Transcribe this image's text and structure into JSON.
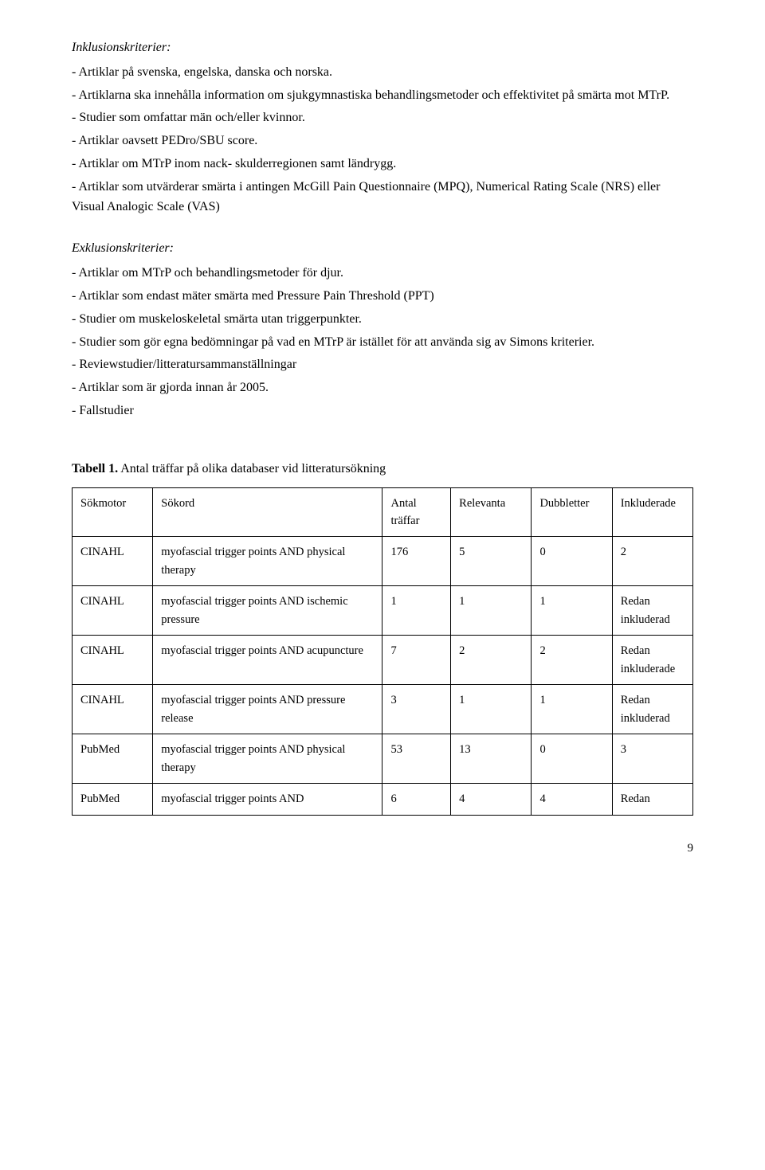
{
  "section1": {
    "heading": "Inklusionskriterier:",
    "items": [
      "- Artiklar på svenska, engelska, danska och norska.",
      "- Artiklarna ska innehålla information om sjukgymnastiska behandlingsmetoder och effektivitet på smärta mot MTrP.",
      "- Studier som omfattar män och/eller kvinnor.",
      "- Artiklar oavsett PEDro/SBU score.",
      "- Artiklar om MTrP inom nack- skulderregionen samt ländrygg.",
      "- Artiklar som utvärderar smärta i antingen McGill Pain Questionnaire (MPQ), Numerical Rating Scale (NRS) eller Visual Analogic Scale (VAS)"
    ]
  },
  "section2": {
    "heading": "Exklusionskriterier:",
    "items": [
      "- Artiklar om MTrP och behandlingsmetoder för djur.",
      "- Artiklar som endast mäter smärta med Pressure Pain Threshold (PPT)",
      "- Studier om muskeloskeletal smärta utan triggerpunkter.",
      "- Studier som gör egna bedömningar på vad en MTrP är istället för att använda sig av Simons kriterier.",
      "- Reviewstudier/litteratursammanställningar",
      "- Artiklar som är gjorda innan år 2005.",
      "- Fallstudier"
    ]
  },
  "table": {
    "caption_bold": "Tabell 1.",
    "caption_rest": " Antal träffar på olika databaser vid litteratursökning",
    "headers": {
      "sokmotor": "Sökmotor",
      "sokord": "Sökord",
      "antal": "Antal träffar",
      "relevanta": "Relevanta",
      "dubbletter": "Dubbletter",
      "inkluderade": "Inkluderade"
    },
    "rows": [
      {
        "sokmotor": "CINAHL",
        "sokord": "myofascial trigger points AND physical therapy",
        "antal": "176",
        "relevanta": "5",
        "dubbletter": "0",
        "inkluderade": "2"
      },
      {
        "sokmotor": "CINAHL",
        "sokord": "myofascial trigger points AND ischemic pressure",
        "antal": "1",
        "relevanta": "1",
        "dubbletter": "1",
        "inkluderade": "Redan inkluderad"
      },
      {
        "sokmotor": "CINAHL",
        "sokord": "myofascial trigger points AND acupuncture",
        "antal": "7",
        "relevanta": "2",
        "dubbletter": "2",
        "inkluderade": "Redan inkluderade"
      },
      {
        "sokmotor": "CINAHL",
        "sokord": "myofascial trigger points AND pressure release",
        "antal": "3",
        "relevanta": "1",
        "dubbletter": "1",
        "inkluderade": "Redan inkluderad"
      },
      {
        "sokmotor": "PubMed",
        "sokord": "myofascial trigger points AND physical therapy",
        "antal": "53",
        "relevanta": "13",
        "dubbletter": "0",
        "inkluderade": "3"
      },
      {
        "sokmotor": "PubMed",
        "sokord": "myofascial trigger points AND",
        "antal": "6",
        "relevanta": "4",
        "dubbletter": "4",
        "inkluderade": "Redan"
      }
    ]
  },
  "page_number": "9"
}
